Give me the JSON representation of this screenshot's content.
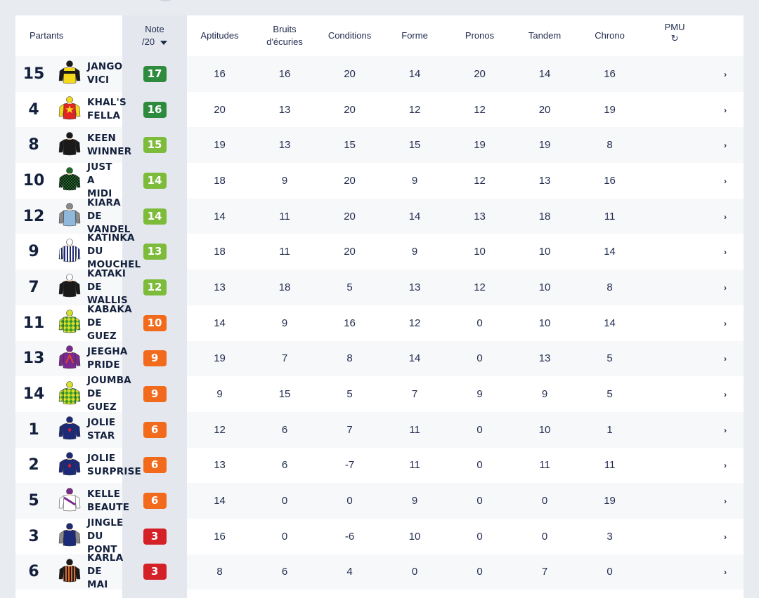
{
  "headers": {
    "partants": "Partants",
    "note_line1": "Note",
    "note_line2": "/20",
    "aptitudes": "Aptitudes",
    "bruits_line1": "Bruits",
    "bruits_line2": "d'écuries",
    "conditions": "Conditions",
    "forme": "Forme",
    "pronos": "Pronos",
    "tandem": "Tandem",
    "chrono": "Chrono",
    "pmu": "PMU",
    "refresh_icon": "↻"
  },
  "colors": {
    "dark_green": "#2e8b3e",
    "green": "#55a83a",
    "light_green": "#7dbb3a",
    "orange": "#f26a1b",
    "red": "#d42027"
  },
  "rows": [
    {
      "num": "15",
      "name": [
        "JANGO",
        "VICI"
      ],
      "note": "17",
      "color": "#2e8b3e",
      "silk": {
        "body": "#f3d81c",
        "sleeves": "#1a1a1a",
        "cap": "#1a1a1a",
        "pattern": "band-black"
      },
      "aptitudes": "16",
      "bruits": "16",
      "conditions": "20",
      "forme": "14",
      "pronos": "20",
      "tandem": "14",
      "chrono": "16",
      "arrow": "›"
    },
    {
      "num": "4",
      "name": [
        "KHAL'S",
        "FELLA"
      ],
      "note": "16",
      "color": "#2e8b3e",
      "silk": {
        "body": "#e02525",
        "sleeves": "#f3d81c",
        "cap": "#f3d81c",
        "pattern": "star"
      },
      "aptitudes": "20",
      "bruits": "13",
      "conditions": "20",
      "forme": "12",
      "pronos": "12",
      "tandem": "20",
      "chrono": "19",
      "arrow": "›"
    },
    {
      "num": "8",
      "name": [
        "KEEN",
        "WINNER"
      ],
      "note": "15",
      "color": "#7dbb3a",
      "silk": {
        "body": "#1a1a1a",
        "sleeves": "#1a1a1a",
        "cap": "#1a1a1a",
        "pattern": "plain"
      },
      "aptitudes": "19",
      "bruits": "13",
      "conditions": "15",
      "forme": "15",
      "pronos": "19",
      "tandem": "19",
      "chrono": "8",
      "arrow": "›"
    },
    {
      "num": "10",
      "name": [
        "JUST",
        "A",
        "MIDI"
      ],
      "note": "14",
      "color": "#7dbb3a",
      "silk": {
        "body": "#1e6b2a",
        "sleeves": "#1e6b2a",
        "cap": "#1e6b2a",
        "pattern": "check-dark"
      },
      "aptitudes": "18",
      "bruits": "9",
      "conditions": "20",
      "forme": "9",
      "pronos": "12",
      "tandem": "13",
      "chrono": "16",
      "arrow": "›"
    },
    {
      "num": "12",
      "name": [
        "KIARA",
        "DE",
        "VANDEL"
      ],
      "note": "14",
      "color": "#7dbb3a",
      "silk": {
        "body": "#8fb8dc",
        "sleeves": "#8a8a8a",
        "cap": "#8a8a8a",
        "pattern": "plain"
      },
      "aptitudes": "14",
      "bruits": "11",
      "conditions": "20",
      "forme": "14",
      "pronos": "13",
      "tandem": "18",
      "chrono": "11",
      "arrow": "›"
    },
    {
      "num": "9",
      "name": [
        "KATINKA",
        "DU",
        "MOUCHEL"
      ],
      "note": "13",
      "color": "#7dbb3a",
      "silk": {
        "body": "#ffffff",
        "sleeves": "#ffffff",
        "cap": "#ffffff",
        "pattern": "stripes-navy"
      },
      "aptitudes": "18",
      "bruits": "11",
      "conditions": "20",
      "forme": "9",
      "pronos": "10",
      "tandem": "10",
      "chrono": "14",
      "arrow": "›"
    },
    {
      "num": "7",
      "name": [
        "KATAKI",
        "DE",
        "WALLIS"
      ],
      "note": "12",
      "color": "#7dbb3a",
      "silk": {
        "body": "#1a1a1a",
        "sleeves": "#1a1a1a",
        "cap": "#ffffff",
        "pattern": "plain"
      },
      "aptitudes": "13",
      "bruits": "18",
      "conditions": "5",
      "forme": "13",
      "pronos": "12",
      "tandem": "10",
      "chrono": "8",
      "arrow": "›"
    },
    {
      "num": "11",
      "name": [
        "KABAKA",
        "DE",
        "GUEZ"
      ],
      "note": "10",
      "color": "#f26a1b",
      "silk": {
        "body": "#3d9a2d",
        "sleeves": "#3d9a2d",
        "cap": "#d6e02a",
        "pattern": "diamonds-yellow"
      },
      "aptitudes": "14",
      "bruits": "9",
      "conditions": "16",
      "forme": "12",
      "pronos": "0",
      "tandem": "10",
      "chrono": "14",
      "arrow": "›"
    },
    {
      "num": "13",
      "name": [
        "JEEGHA",
        "PRIDE"
      ],
      "note": "9",
      "color": "#f26a1b",
      "silk": {
        "body": "#7a2a8f",
        "sleeves": "#7a2a8f",
        "cap": "#7a2a8f",
        "pattern": "chevron-red"
      },
      "aptitudes": "19",
      "bruits": "7",
      "conditions": "8",
      "forme": "14",
      "pronos": "0",
      "tandem": "13",
      "chrono": "5",
      "arrow": "›"
    },
    {
      "num": "14",
      "name": [
        "JOUMBA",
        "DE",
        "GUEZ"
      ],
      "note": "9",
      "color": "#f26a1b",
      "silk": {
        "body": "#3d9a2d",
        "sleeves": "#3d9a2d",
        "cap": "#d6e02a",
        "pattern": "diamonds-yellow"
      },
      "aptitudes": "9",
      "bruits": "15",
      "conditions": "5",
      "forme": "7",
      "pronos": "9",
      "tandem": "9",
      "chrono": "5",
      "arrow": "›"
    },
    {
      "num": "1",
      "name": [
        "JOLIE",
        "STAR"
      ],
      "note": "6",
      "color": "#f26a1b",
      "silk": {
        "body": "#1c2a78",
        "sleeves": "#1c2a78",
        "cap": "#1c2a78",
        "pattern": "dot-red"
      },
      "aptitudes": "12",
      "bruits": "6",
      "conditions": "7",
      "forme": "11",
      "pronos": "0",
      "tandem": "10",
      "chrono": "1",
      "arrow": "›"
    },
    {
      "num": "2",
      "name": [
        "JOLIE",
        "SURPRISE"
      ],
      "note": "6",
      "color": "#f26a1b",
      "silk": {
        "body": "#1c2a78",
        "sleeves": "#1c2a78",
        "cap": "#1c2a78",
        "pattern": "dot-red"
      },
      "aptitudes": "13",
      "bruits": "6",
      "conditions": "-7",
      "forme": "11",
      "pronos": "0",
      "tandem": "11",
      "chrono": "11",
      "arrow": "›"
    },
    {
      "num": "5",
      "name": [
        "KELLE",
        "BEAUTE"
      ],
      "note": "6",
      "color": "#f26a1b",
      "silk": {
        "body": "#ffffff",
        "sleeves": "#ffffff",
        "cap": "#7a2a8f",
        "pattern": "sash-purple"
      },
      "aptitudes": "14",
      "bruits": "0",
      "conditions": "0",
      "forme": "9",
      "pronos": "0",
      "tandem": "0",
      "chrono": "19",
      "arrow": "›"
    },
    {
      "num": "3",
      "name": [
        "JINGLE",
        "DU",
        "PONT"
      ],
      "note": "3",
      "color": "#d42027",
      "silk": {
        "body": "#1c2a78",
        "sleeves": "#8a8a8a",
        "cap": "#1c2a78",
        "pattern": "plain"
      },
      "aptitudes": "16",
      "bruits": "0",
      "conditions": "-6",
      "forme": "10",
      "pronos": "0",
      "tandem": "0",
      "chrono": "3",
      "arrow": "›"
    },
    {
      "num": "6",
      "name": [
        "KARLA",
        "DE",
        "MAI"
      ],
      "note": "3",
      "color": "#d42027",
      "silk": {
        "body": "#e06a2a",
        "sleeves": "#1a1a1a",
        "cap": "#1a1a1a",
        "pattern": "stripes-black"
      },
      "aptitudes": "8",
      "bruits": "6",
      "conditions": "4",
      "forme": "0",
      "pronos": "0",
      "tandem": "7",
      "chrono": "0",
      "arrow": "›"
    }
  ]
}
